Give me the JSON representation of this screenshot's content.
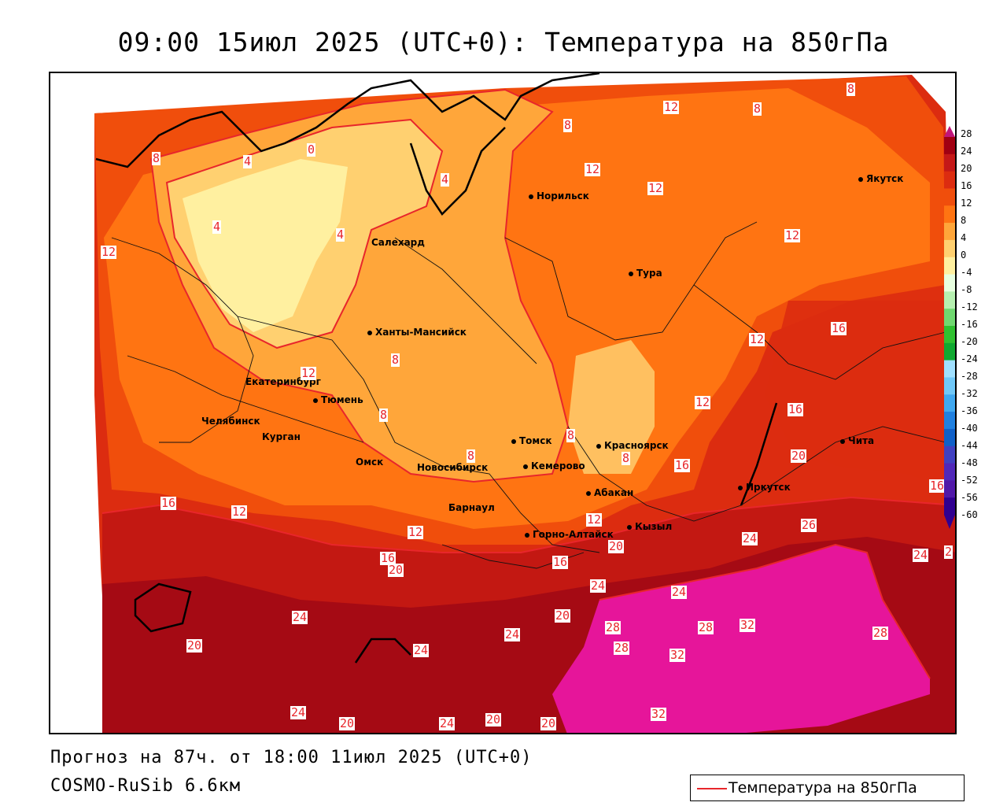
{
  "title": "09:00 15июл 2025 (UTC+0): Температура на 850гПа",
  "forecast_line": "Прогноз на 87ч. от 18:00 11июл 2025 (UTC+0)",
  "model_line": "COSMO-RuSib 6.6км",
  "legend": {
    "label": "Температура на 850гПа",
    "color": "#e8262b"
  },
  "colors": {
    "contour": "#e8262b",
    "hot": "#e6159a",
    "band_28": "#a50a14",
    "band_24": "#c31812",
    "band_20": "#dc2c10",
    "band_16": "#f04e0c",
    "band_12": "#ff7412",
    "band_8": "#ffa63a",
    "band_4": "#ffd070",
    "band_0": "#fff0a0"
  },
  "scale": {
    "ticks": [
      "28",
      "24",
      "20",
      "16",
      "12",
      "8",
      "4",
      "0",
      "-4",
      "-8",
      "-12",
      "-16",
      "-20",
      "-24",
      "-28",
      "-32",
      "-36",
      "-40",
      "-44",
      "-48",
      "-52",
      "-56",
      "-60"
    ],
    "colors": [
      "#a00012",
      "#c41818",
      "#dc2c10",
      "#f04e0c",
      "#ff7412",
      "#ffa63a",
      "#ffd070",
      "#fff0a0",
      "#e8ffe0",
      "#b6f0b0",
      "#70d870",
      "#30c030",
      "#10a830",
      "#a0e0ff",
      "#70c8f8",
      "#40a8f0",
      "#2080e0",
      "#1060c8",
      "#4040c0",
      "#5028b8",
      "#5018a8",
      "#300090"
    ]
  },
  "cities": [
    {
      "name": "Норильск"
    },
    {
      "name": "Якутск"
    },
    {
      "name": "Салехард"
    },
    {
      "name": "Тура"
    },
    {
      "name": "Ханты-Мансийск"
    },
    {
      "name": "Екатеринбург"
    },
    {
      "name": "Тюмень"
    },
    {
      "name": "Челябинск"
    },
    {
      "name": "Курган"
    },
    {
      "name": "Омск"
    },
    {
      "name": "Новосибирск"
    },
    {
      "name": "Томск"
    },
    {
      "name": "Кемерово"
    },
    {
      "name": "Красноярск"
    },
    {
      "name": "Барнаул"
    },
    {
      "name": "Абакан"
    },
    {
      "name": "Горно-Алтайск"
    },
    {
      "name": "Кызыл"
    },
    {
      "name": "Иркутск"
    },
    {
      "name": "Чита"
    }
  ],
  "contour_labels": [
    "8",
    "8",
    "8",
    "12",
    "12",
    "12",
    "12",
    "12",
    "12",
    "8",
    "4",
    "4",
    "4",
    "4",
    "0",
    "12",
    "8",
    "8",
    "8",
    "8",
    "8",
    "16",
    "16",
    "16",
    "16",
    "12",
    "12",
    "12",
    "16",
    "20",
    "20",
    "16",
    "24",
    "24",
    "24",
    "24",
    "24",
    "24",
    "20",
    "20",
    "20",
    "20",
    "20",
    "24",
    "28",
    "28",
    "28",
    "32",
    "32",
    "32",
    "26",
    "24",
    "20",
    "16",
    "12",
    "28",
    "24",
    "2"
  ]
}
